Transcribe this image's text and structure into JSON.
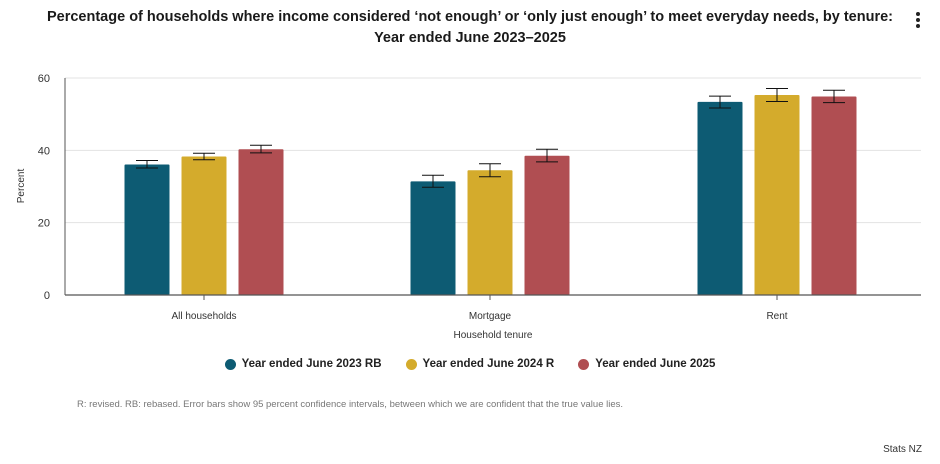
{
  "chart_data": {
    "type": "bar",
    "title": "Percentage of households where income considered ‘not enough’ or ‘only just enough’ to meet everyday needs, by tenure: Year ended June 2023–2025",
    "xlabel": "Household tenure",
    "ylabel": "Percent",
    "ylim": [
      0,
      60
    ],
    "yticks": [
      0,
      20,
      40,
      60
    ],
    "grid": true,
    "categories": [
      "All households",
      "Mortgage",
      "Rent"
    ],
    "series": [
      {
        "name": "Year ended June 2023 RB",
        "color": "#0d5b73",
        "values": [
          36.1,
          31.4,
          53.4
        ],
        "err_low": [
          35.1,
          29.8,
          51.7
        ],
        "err_high": [
          37.2,
          33.1,
          55.0
        ]
      },
      {
        "name": "Year ended June 2024 R",
        "color": "#d4ab2c",
        "values": [
          38.3,
          34.5,
          55.3
        ],
        "err_low": [
          37.4,
          32.7,
          53.5
        ],
        "err_high": [
          39.2,
          36.3,
          57.1
        ]
      },
      {
        "name": "Year ended June 2025",
        "color": "#b04e52",
        "values": [
          40.3,
          38.5,
          54.9
        ],
        "err_low": [
          39.3,
          36.8,
          53.2
        ],
        "err_high": [
          41.4,
          40.3,
          56.6
        ]
      }
    ],
    "legend_position": "bottom"
  },
  "note": "R: revised. RB: rebased. Error bars show 95 percent confidence intervals, between which we are confident that the true value lies.",
  "credit": "Stats NZ",
  "menu_icon": "more-vertical-icon"
}
